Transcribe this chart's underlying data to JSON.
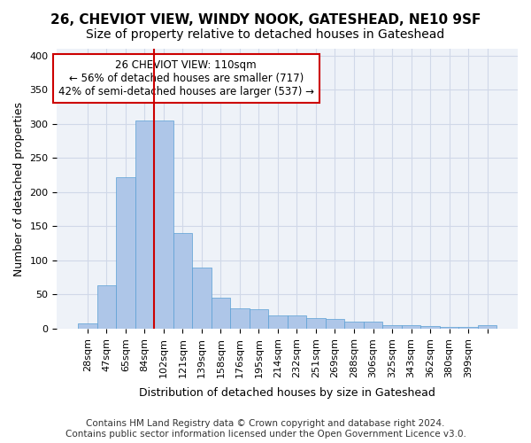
{
  "title_line1": "26, CHEVIOT VIEW, WINDY NOOK, GATESHEAD, NE10 9SF",
  "title_line2": "Size of property relative to detached houses in Gateshead",
  "xlabel": "Distribution of detached houses by size in Gateshead",
  "ylabel": "Number of detached properties",
  "bar_values": [
    8,
    63,
    222,
    305,
    305,
    140,
    90,
    46,
    30,
    28,
    20,
    20,
    15,
    14,
    11,
    10,
    5,
    5,
    4,
    3,
    3,
    5
  ],
  "bar_labels": [
    "28sqm",
    "47sqm",
    "65sqm",
    "84sqm",
    "102sqm",
    "121sqm",
    "139sqm",
    "158sqm",
    "176sqm",
    "195sqm",
    "214sqm",
    "232sqm",
    "251sqm",
    "269sqm",
    "288sqm",
    "306sqm",
    "325sqm",
    "343sqm",
    "362sqm",
    "380sqm",
    "399sqm",
    ""
  ],
  "bar_color": "#aec6e8",
  "bar_edge_color": "#5a9fd4",
  "grid_color": "#d0d8e8",
  "background_color": "#eef2f8",
  "annotation_line1": "26 CHEVIOT VIEW: 110sqm",
  "annotation_line2": "← 56% of detached houses are smaller (717)",
  "annotation_line3": "42% of semi-detached houses are larger (537) →",
  "annotation_box_color": "#ffffff",
  "annotation_box_edge": "#cc0000",
  "vline_x": 4.5,
  "vline_color": "#cc0000",
  "ylim": [
    0,
    410
  ],
  "footer_line1": "Contains HM Land Registry data © Crown copyright and database right 2024.",
  "footer_line2": "Contains public sector information licensed under the Open Government Licence v3.0.",
  "title_fontsize": 11,
  "subtitle_fontsize": 10,
  "axis_label_fontsize": 9,
  "tick_fontsize": 8,
  "annotation_fontsize": 8.5,
  "footer_fontsize": 7.5
}
